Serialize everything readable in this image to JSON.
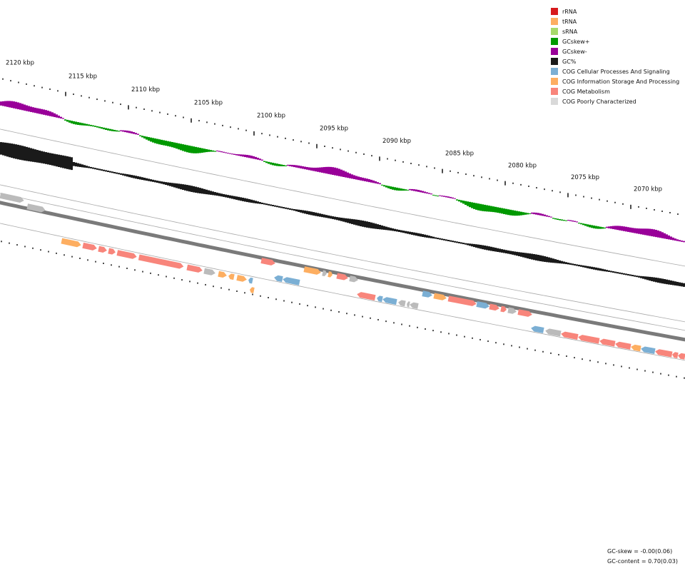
{
  "legend": [
    {
      "label": "rRNA",
      "color": "#d7191c"
    },
    {
      "label": "tRNA",
      "color": "#fdae61"
    },
    {
      "label": "sRNA",
      "color": "#a6d96a"
    },
    {
      "label": "GCskew+",
      "color": "#009900"
    },
    {
      "label": "GCskew-",
      "color": "#990099"
    },
    {
      "label": "GC%",
      "color": "#1a1a1a"
    },
    {
      "label": "COG Cellular Processes And Signaling",
      "color": "#7bafd4"
    },
    {
      "label": "COG Information Storage And Processing",
      "color": "#fdae61"
    },
    {
      "label": "COG Metabolism",
      "color": "#f8857b"
    },
    {
      "label": "COG Poorly Characterized",
      "color": "#d9d9d9"
    }
  ],
  "kbp_labels": [
    "2120 kbp",
    "2115 kbp",
    "2110 kbp",
    "2105 kbp",
    "2100 kbp",
    "2095 kbp",
    "2090 kbp",
    "2085 kbp",
    "2080 kbp",
    "2075 kbp",
    "2070 kbp"
  ],
  "stats": {
    "gc_skew": "GC-skew = -0.00(0.06)",
    "gc_content": "GC-content = 0.70(0.03)"
  },
  "colors": {
    "backbone": "#7a7a7a",
    "track_line": "#aaaaaa",
    "tick": "#111111"
  }
}
